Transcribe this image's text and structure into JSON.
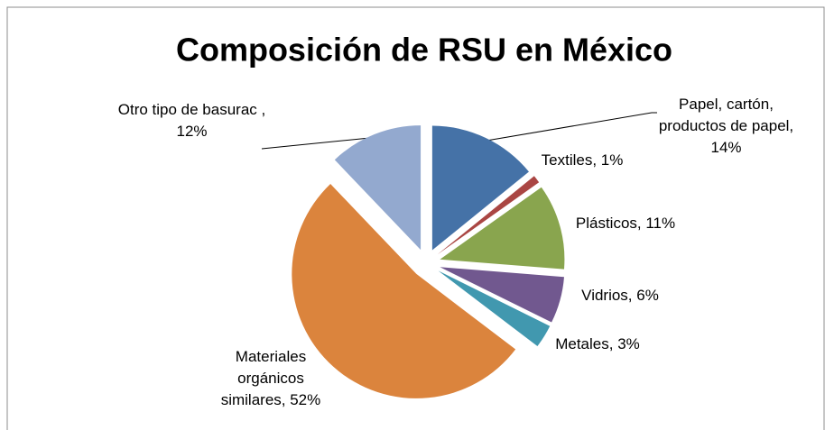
{
  "chart_data": {
    "type": "pie",
    "title": "Composición  de RSU en México",
    "categories": [
      "Papel, cartón, productos de papel, 14%",
      "Textiles, 1%",
      "Plásticos, 11%",
      "Vidrios, 6%",
      "Metales, 3%",
      "Materiales orgánicos similares, 52%",
      "Otro tipo de basurac , 12%"
    ],
    "values": [
      14,
      1,
      11,
      6,
      3,
      52,
      12
    ],
    "colors": [
      "#4572a7",
      "#aa4643",
      "#89a54e",
      "#71588f",
      "#4198af",
      "#db843d",
      "#93a9cf"
    ],
    "exploded": true
  }
}
